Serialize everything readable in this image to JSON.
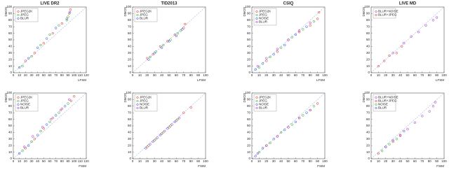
{
  "chart_data": [
    {
      "type": "scatter",
      "title": "LIVE DR2",
      "x_label": "LFSM",
      "y_label": "DMOS",
      "xlim": [
        0,
        120
      ],
      "ylim": [
        0,
        100
      ],
      "xticks": [
        0,
        10,
        20,
        30,
        40,
        50,
        60,
        70,
        80,
        90,
        100,
        110,
        120
      ],
      "yticks": [
        0,
        10,
        20,
        30,
        40,
        50,
        60,
        70,
        80,
        90,
        100
      ],
      "legend": "upper left",
      "series": [
        {
          "name": "JPEG2K",
          "color": "#e02020",
          "x": [
            20,
            35,
            50,
            65,
            80,
            92,
            94
          ],
          "values": [
            18,
            30,
            45,
            60,
            75,
            90,
            96
          ]
        },
        {
          "name": "JPEG",
          "color": "#20a020",
          "x": [
            15,
            30,
            45,
            60,
            75,
            90,
            88
          ],
          "values": [
            10,
            25,
            42,
            58,
            72,
            85,
            80
          ]
        },
        {
          "name": "BLUR",
          "color": "#2040e0",
          "x": [
            10,
            25,
            40,
            55,
            70,
            88,
            93
          ],
          "values": [
            8,
            22,
            38,
            52,
            68,
            82,
            92
          ]
        }
      ]
    },
    {
      "type": "scatter",
      "title": "TID2013",
      "x_label": "LFSM",
      "y_label": "DMOS",
      "xlim": [
        0,
        100
      ],
      "ylim": [
        0,
        100
      ],
      "xticks": [
        0,
        10,
        20,
        30,
        40,
        50,
        60,
        70,
        80,
        90,
        100
      ],
      "yticks": [
        0,
        10,
        20,
        30,
        40,
        50,
        60,
        70,
        80,
        90,
        100
      ],
      "legend": "upper left",
      "series": [
        {
          "name": "JPEG2K",
          "color": "#e02020",
          "x": [
            20,
            28,
            38,
            48,
            58,
            70,
            72
          ],
          "values": [
            22,
            28,
            40,
            48,
            58,
            68,
            74
          ]
        },
        {
          "name": "JPEG",
          "color": "#20a020",
          "x": [
            24,
            32,
            42,
            52,
            62,
            66
          ],
          "values": [
            24,
            32,
            42,
            50,
            60,
            64
          ]
        },
        {
          "name": "BLUR",
          "color": "#2040e0",
          "x": [
            22,
            30,
            40,
            50,
            60,
            68
          ],
          "values": [
            20,
            30,
            38,
            48,
            56,
            66
          ]
        }
      ]
    },
    {
      "type": "scatter",
      "title": "CSIQ",
      "x_label": "LFSM",
      "y_label": "DMOS",
      "xlim": [
        0,
        100
      ],
      "ylim": [
        0,
        100
      ],
      "xticks": [
        0,
        10,
        20,
        30,
        40,
        50,
        60,
        70,
        80,
        90,
        100
      ],
      "yticks": [
        0,
        10,
        20,
        30,
        40,
        50,
        60,
        70,
        80,
        90,
        100
      ],
      "legend": "upper left",
      "series": [
        {
          "name": "JPEG2K",
          "color": "#e02020",
          "x": [
            20,
            35,
            50,
            65,
            80,
            90,
            92
          ],
          "values": [
            18,
            32,
            50,
            62,
            72,
            82,
            92
          ]
        },
        {
          "name": "JPEG",
          "color": "#20a020",
          "x": [
            10,
            25,
            40,
            55,
            70,
            85
          ],
          "values": [
            8,
            24,
            38,
            54,
            66,
            78
          ]
        },
        {
          "name": "NOISE",
          "color": "#2040e0",
          "x": [
            5,
            15,
            30,
            45,
            60,
            75
          ],
          "values": [
            5,
            14,
            28,
            42,
            58,
            70
          ]
        },
        {
          "name": "BLUR",
          "color": "#a020c0",
          "x": [
            8,
            20,
            35,
            50,
            65,
            80
          ],
          "values": [
            10,
            22,
            36,
            50,
            64,
            76
          ]
        }
      ]
    },
    {
      "type": "scatter",
      "title": "LIVE MD",
      "x_label": "LFSM",
      "y_label": "DMOS",
      "xlim": [
        0,
        100
      ],
      "ylim": [
        0,
        100
      ],
      "xticks": [
        0,
        10,
        20,
        30,
        40,
        50,
        60,
        70,
        80,
        90,
        100
      ],
      "yticks": [
        0,
        10,
        20,
        30,
        40,
        50,
        60,
        70,
        80,
        90,
        100
      ],
      "legend": "upper left",
      "series": [
        {
          "name": "BLUR+NOISE",
          "color": "#a020c0",
          "x": [
            30,
            45,
            55,
            65,
            75,
            85,
            90
          ],
          "values": [
            30,
            45,
            55,
            62,
            72,
            80,
            84
          ]
        },
        {
          "name": "BLUR+JPEG",
          "color": "#e02020",
          "x": [
            10,
            18,
            25,
            35,
            42
          ],
          "values": [
            10,
            18,
            26,
            30,
            40
          ]
        }
      ]
    },
    {
      "type": "scatter",
      "title": null,
      "x_label": "FSIM",
      "y_label": "DMOS",
      "xlim": [
        0,
        120
      ],
      "ylim": [
        0,
        100
      ],
      "xticks": [
        0,
        10,
        20,
        30,
        40,
        50,
        60,
        70,
        80,
        90,
        100,
        110,
        120
      ],
      "yticks": [
        0,
        10,
        20,
        30,
        40,
        50,
        60,
        70,
        80,
        90,
        100
      ],
      "legend": "upper left",
      "series": [
        {
          "name": "JPEG2K",
          "color": "#e02020",
          "x": [
            20,
            35,
            50,
            65,
            80,
            95,
            100
          ],
          "values": [
            16,
            30,
            46,
            62,
            76,
            88,
            95
          ]
        },
        {
          "name": "JPEG",
          "color": "#20a020",
          "x": [
            15,
            30,
            45,
            60,
            75,
            90
          ],
          "values": [
            12,
            26,
            42,
            56,
            70,
            84
          ]
        },
        {
          "name": "NOISE",
          "color": "#2040e0",
          "x": [
            10,
            25,
            40,
            55,
            70,
            85
          ],
          "values": [
            8,
            20,
            36,
            52,
            66,
            80
          ]
        },
        {
          "name": "BLUR",
          "color": "#a020c0",
          "x": [
            18,
            32,
            48,
            62,
            78,
            92
          ],
          "values": [
            18,
            34,
            48,
            60,
            74,
            90
          ]
        }
      ]
    },
    {
      "type": "scatter",
      "title": null,
      "x_label": "FSIM",
      "y_label": "DMOS",
      "xlim": [
        0,
        100
      ],
      "ylim": [
        0,
        100
      ],
      "xticks": [
        0,
        10,
        20,
        30,
        40,
        50,
        60,
        70,
        80,
        90,
        100
      ],
      "yticks": [
        0,
        10,
        20,
        30,
        40,
        50,
        60,
        70,
        80,
        90,
        100
      ],
      "legend": "upper left",
      "series": [
        {
          "name": "JPEG2K",
          "color": "#e02020",
          "x": [
            20,
            30,
            40,
            50,
            60,
            70,
            80
          ],
          "values": [
            18,
            28,
            38,
            48,
            58,
            70,
            78
          ]
        },
        {
          "name": "JPEG",
          "color": "#20a020",
          "x": [
            22,
            32,
            42,
            52,
            62
          ],
          "values": [
            20,
            30,
            40,
            50,
            60
          ]
        },
        {
          "name": "NOISE",
          "color": "#2040e0",
          "x": [
            18,
            28,
            38,
            48,
            58
          ],
          "values": [
            16,
            26,
            36,
            46,
            56
          ]
        },
        {
          "name": "BLUR",
          "color": "#a020c0",
          "x": [
            24,
            34,
            44,
            54,
            64
          ],
          "values": [
            22,
            32,
            42,
            52,
            62
          ]
        }
      ]
    },
    {
      "type": "scatter",
      "title": null,
      "x_label": "FSIM",
      "y_label": "DMOS",
      "xlim": [
        0,
        100
      ],
      "ylim": [
        0,
        100
      ],
      "xticks": [
        0,
        10,
        20,
        30,
        40,
        50,
        60,
        70,
        80,
        90,
        100
      ],
      "yticks": [
        0,
        10,
        20,
        30,
        40,
        50,
        60,
        70,
        80,
        90,
        100
      ],
      "legend": "upper left",
      "series": [
        {
          "name": "JPEG2K",
          "color": "#e02020",
          "x": [
            20,
            35,
            50,
            65,
            80,
            90
          ],
          "values": [
            20,
            34,
            48,
            62,
            74,
            84
          ]
        },
        {
          "name": "JPEG",
          "color": "#20a020",
          "x": [
            10,
            25,
            40,
            55,
            70,
            85
          ],
          "values": [
            10,
            24,
            40,
            52,
            66,
            80
          ]
        },
        {
          "name": "NOISE",
          "color": "#2040e0",
          "x": [
            5,
            15,
            30,
            45,
            60,
            75
          ],
          "values": [
            4,
            16,
            30,
            44,
            56,
            70
          ]
        },
        {
          "name": "BLUR",
          "color": "#a020c0",
          "x": [
            8,
            20,
            35,
            50,
            65,
            80
          ],
          "values": [
            8,
            20,
            34,
            48,
            62,
            74
          ]
        }
      ]
    },
    {
      "type": "scatter",
      "title": null,
      "x_label": "FSIM",
      "y_label": "DMOS",
      "xlim": [
        0,
        100
      ],
      "ylim": [
        0,
        100
      ],
      "xticks": [
        0,
        10,
        20,
        30,
        40,
        50,
        60,
        70,
        80,
        90,
        100
      ],
      "yticks": [
        0,
        10,
        20,
        30,
        40,
        50,
        60,
        70,
        80,
        90,
        100
      ],
      "legend": "upper left",
      "series": [
        {
          "name": "BLUR+NOISE",
          "color": "#a020c0",
          "x": [
            40,
            50,
            60,
            70,
            80,
            85,
            88
          ],
          "values": [
            35,
            45,
            55,
            65,
            72,
            80,
            86
          ]
        },
        {
          "name": "BLUR+JPEG",
          "color": "#e02020",
          "x": [
            10,
            20,
            30,
            40
          ],
          "values": [
            8,
            18,
            26,
            36
          ]
        },
        {
          "name": "NOISE",
          "color": "#20a020",
          "x": [
            15,
            25,
            35
          ],
          "values": [
            12,
            22,
            30
          ]
        },
        {
          "name": "BLUR",
          "color": "#2040e0",
          "x": [
            20,
            30,
            45
          ],
          "values": [
            18,
            28,
            42
          ]
        }
      ]
    }
  ]
}
